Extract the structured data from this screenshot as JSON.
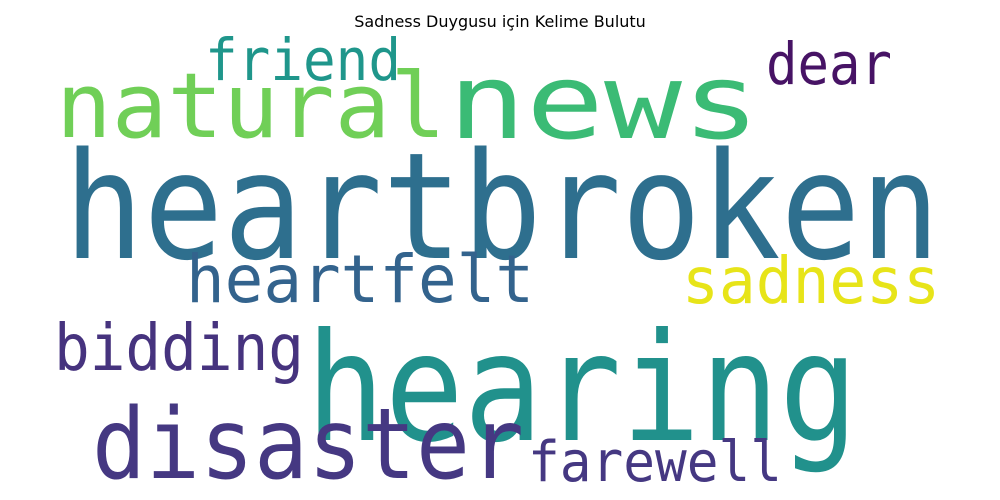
{
  "chart_data": {
    "type": "wordcloud",
    "title": "Sadness Duygusu için Kelime Bulutu",
    "words": [
      {
        "text": "heartbroken",
        "color": "#2e6f8e"
      },
      {
        "text": "hearing",
        "color": "#21918c"
      },
      {
        "text": "news",
        "color": "#3bbb75"
      },
      {
        "text": "natural",
        "color": "#70cf57"
      },
      {
        "text": "disaster",
        "color": "#453882"
      },
      {
        "text": "heartfelt",
        "color": "#33638d"
      },
      {
        "text": "sadness",
        "color": "#e7e419"
      },
      {
        "text": "bidding",
        "color": "#46337e"
      },
      {
        "text": "friend",
        "color": "#1f968b"
      },
      {
        "text": "farewell",
        "color": "#453882"
      },
      {
        "text": "dear",
        "color": "#471365"
      }
    ]
  }
}
